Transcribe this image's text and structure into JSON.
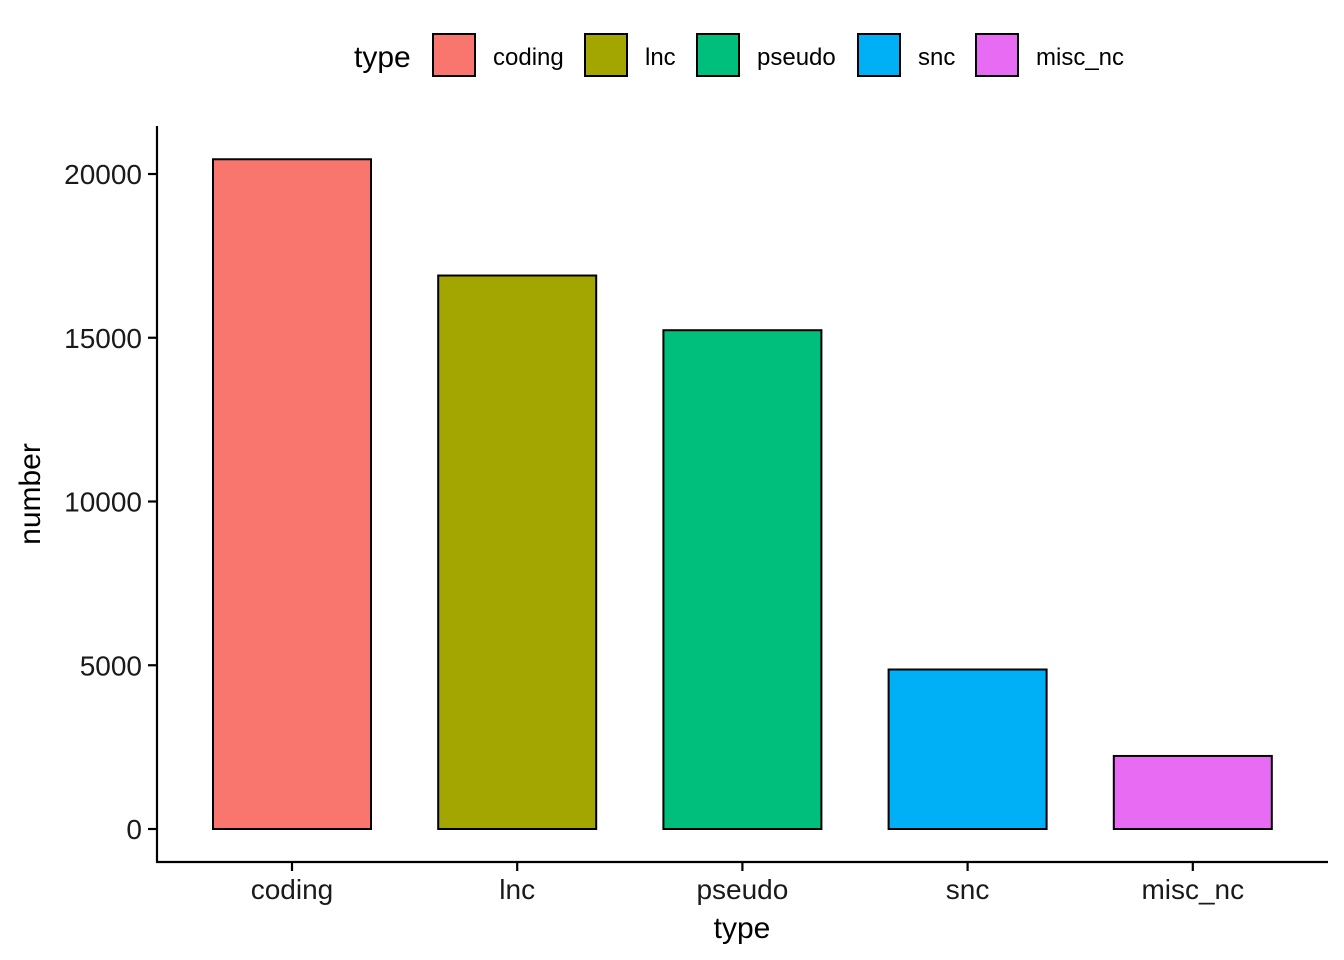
{
  "chart_data": {
    "type": "bar",
    "categories": [
      "coding",
      "lnc",
      "pseudo",
      "snc",
      "misc_nc"
    ],
    "values": [
      20450,
      16900,
      15230,
      4870,
      2230
    ],
    "colors": [
      "#F8766D",
      "#A3A500",
      "#00BF7D",
      "#00B0F6",
      "#E76BF3"
    ],
    "xlabel": "type",
    "ylabel": "number",
    "ylim": [
      -1000,
      21500
    ],
    "yticks": [
      0,
      5000,
      10000,
      15000,
      20000
    ],
    "grid": false,
    "legend": {
      "title": "type",
      "placement": "top",
      "entries": [
        "coding",
        "lnc",
        "pseudo",
        "snc",
        "misc_nc"
      ]
    }
  }
}
